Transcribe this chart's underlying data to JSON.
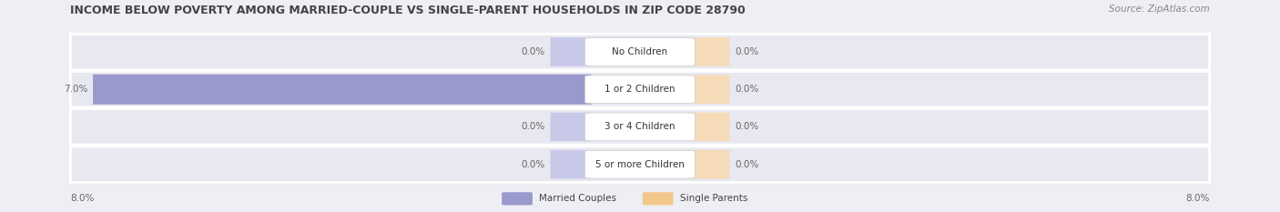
{
  "title": "INCOME BELOW POVERTY AMONG MARRIED-COUPLE VS SINGLE-PARENT HOUSEHOLDS IN ZIP CODE 28790",
  "source": "Source: ZipAtlas.com",
  "categories": [
    "No Children",
    "1 or 2 Children",
    "3 or 4 Children",
    "5 or more Children"
  ],
  "married_values": [
    0.0,
    7.0,
    0.0,
    0.0
  ],
  "single_values": [
    0.0,
    0.0,
    0.0,
    0.0
  ],
  "xlim_max": 8.0,
  "x_left_label": "8.0%",
  "x_right_label": "8.0%",
  "married_color": "#9999cc",
  "single_color": "#f2c88a",
  "married_color_light": "#c8c8e8",
  "single_color_light": "#f5dbb8",
  "married_legend": "Married Couples",
  "single_legend": "Single Parents",
  "bg_color": "#eeeef5",
  "bar_bg_color": "#e2e2ec",
  "row_bg_color": "#e8e8f0",
  "label_color": "#666666",
  "category_label_color": "#333333",
  "title_color": "#444444",
  "title_fontsize": 9.0,
  "source_fontsize": 7.5,
  "label_fontsize": 7.5,
  "category_fontsize": 7.5
}
